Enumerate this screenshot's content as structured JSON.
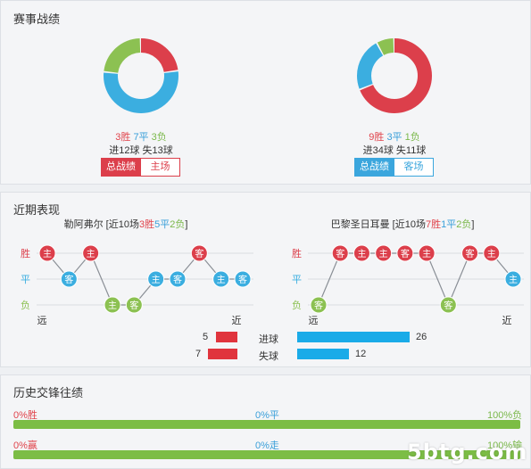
{
  "record": {
    "title": "赛事战绩",
    "left": {
      "win": "3胜",
      "draw": "7平",
      "loss": "3负",
      "goals": "进12球  失13球",
      "tab_active": "总战绩",
      "tab_other": "主场",
      "donut": [
        {
          "value": 3,
          "color": "#dc3f4b"
        },
        {
          "value": 7,
          "color": "#3baee0"
        },
        {
          "value": 3,
          "color": "#8cc152"
        }
      ]
    },
    "right": {
      "win": "9胜",
      "draw": "3平",
      "loss": "1负",
      "goals": "进34球  失11球",
      "tab_active": "总战绩",
      "tab_other": "客场",
      "donut": [
        {
          "value": 9,
          "color": "#dc3f4b"
        },
        {
          "value": 3,
          "color": "#3baee0"
        },
        {
          "value": 1,
          "color": "#8cc152"
        }
      ]
    }
  },
  "recent": {
    "title": "近期表现",
    "row_labels": [
      "胜",
      "平",
      "负"
    ],
    "far_label": "远",
    "near_label": "近",
    "left": {
      "team": "勒阿弗尔",
      "summary_prefix": " [近10场",
      "w": "3胜",
      "d": "5平",
      "l": "2负",
      "summary_suffix": "]",
      "matches": [
        {
          "result": "W",
          "venue": "主"
        },
        {
          "result": "D",
          "venue": "客"
        },
        {
          "result": "W",
          "venue": "主"
        },
        {
          "result": "L",
          "venue": "主"
        },
        {
          "result": "L",
          "venue": "客"
        },
        {
          "result": "D",
          "venue": "主"
        },
        {
          "result": "D",
          "venue": "客"
        },
        {
          "result": "W",
          "venue": "客"
        },
        {
          "result": "D",
          "venue": "主"
        },
        {
          "result": "D",
          "venue": "客"
        }
      ]
    },
    "right": {
      "team": "巴黎圣日耳曼",
      "summary_prefix": " [近10场",
      "w": "7胜",
      "d": "1平",
      "l": "2负",
      "summary_suffix": "]",
      "matches": [
        {
          "result": "L",
          "venue": "客"
        },
        {
          "result": "W",
          "venue": "客"
        },
        {
          "result": "W",
          "venue": "主"
        },
        {
          "result": "W",
          "venue": "主"
        },
        {
          "result": "W",
          "venue": "客"
        },
        {
          "result": "W",
          "venue": "主"
        },
        {
          "result": "L",
          "venue": "客"
        },
        {
          "result": "W",
          "venue": "客"
        },
        {
          "result": "W",
          "venue": "主"
        },
        {
          "result": "D",
          "venue": "主"
        }
      ]
    },
    "goals": {
      "scored_label": "进球",
      "conceded_label": "失球",
      "left_scored": 5,
      "left_conceded": 7,
      "right_scored": 26,
      "right_conceded": 12
    }
  },
  "history": {
    "title": "历史交锋往绩",
    "row1": {
      "left": "0%胜",
      "mid": "0%平",
      "right": "100%负"
    },
    "row2": {
      "left": "0%赢",
      "mid": "0%走",
      "right": "100%输"
    }
  },
  "watermark": "5btg.com"
}
